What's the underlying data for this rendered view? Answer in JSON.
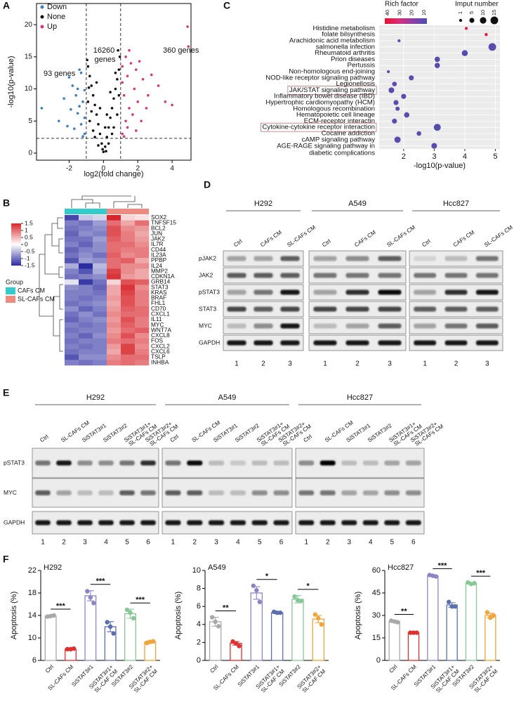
{
  "panels": [
    "A",
    "B",
    "C",
    "D",
    "E",
    "F"
  ],
  "chart_data": [
    {
      "type": "volcano",
      "xlabel": "log2(fold change)",
      "ylabel": "-log10(p-value)",
      "xlim": [
        -3.9,
        5.1
      ],
      "xticks": [
        -2,
        0,
        2,
        4
      ],
      "ylim": [
        -1.1,
        23.3
      ],
      "yticks": [
        0,
        5,
        10,
        15,
        20
      ],
      "x_thresholds": [
        -1,
        1
      ],
      "y_threshold": 2.3,
      "annotations": [
        "93 genes",
        "16260 genes",
        "360 genes"
      ],
      "series": [
        {
          "name": "Down",
          "color": "#3a7fc1",
          "x": [
            -1.1,
            -1.3,
            -1.5,
            -1.2,
            -1.8,
            -1.4,
            -2.0,
            -1.6,
            -1.1,
            -2.3,
            -1.3,
            -1.7,
            -1.9,
            -2.6,
            -1.2,
            -1.5,
            -3.6,
            -1.4,
            -2.1,
            -1.1
          ],
          "y": [
            3.0,
            4.5,
            6.2,
            8.0,
            10.5,
            7.3,
            11.8,
            9.0,
            5.5,
            8.5,
            12.5,
            3.8,
            6.8,
            5.0,
            2.6,
            10.0,
            7.0,
            13.0,
            4.2,
            9.8
          ]
        },
        {
          "name": "None",
          "color": "#111111",
          "x": [
            0,
            0.1,
            -0.1,
            0.2,
            -0.2,
            0.3,
            -0.3,
            0.4,
            -0.4,
            0.5,
            -0.5,
            0.6,
            -0.6,
            0.7,
            -0.7,
            0.8,
            -0.8,
            0.9,
            -0.9,
            0.95,
            -0.95,
            0.5,
            -0.5,
            0.8,
            -0.8,
            0.3,
            -0.3,
            0.9,
            -0.9,
            0.6,
            -0.6,
            0.7,
            0.4,
            -0.4,
            0.2,
            -0.2,
            0.1,
            -0.7,
            0.85,
            -0.05,
            0.15,
            -0.85
          ],
          "y": [
            0.2,
            1,
            1.5,
            2.5,
            3,
            4,
            4.5,
            5.5,
            6,
            7,
            7.5,
            8.5,
            9,
            10,
            10.5,
            11.5,
            12,
            13,
            13.5,
            15,
            14.5,
            3,
            2.5,
            6,
            5,
            1.5,
            1.2,
            9,
            8,
            4,
            3.5,
            12.5,
            9.5,
            11,
            6,
            7,
            4,
            6.5,
            16,
            0.6,
            0.3,
            10.2
          ]
        },
        {
          "name": "Up",
          "color": "#d6357f",
          "x": [
            1.1,
            1.3,
            1.5,
            1.2,
            1.8,
            1.4,
            2.0,
            1.6,
            1.1,
            2.3,
            1.3,
            1.7,
            1.9,
            2.6,
            1.2,
            2.8,
            3.2,
            4.0,
            1.5,
            2.2,
            1.1,
            2.5,
            3.6,
            1.9,
            4.9,
            4.95,
            1.4,
            2.1
          ],
          "y": [
            3,
            5,
            7,
            9,
            10,
            12,
            8,
            14,
            11,
            11.5,
            15,
            6,
            13,
            9,
            2.6,
            12.2,
            10.5,
            7.5,
            16,
            5,
            13.5,
            7,
            8,
            3.5,
            19.7,
            16.6,
            4,
            14.3
          ]
        }
      ]
    },
    {
      "type": "heatmap",
      "rows": [
        "SOX2",
        "TNFSF15",
        "BCL2",
        "JUN",
        "JAK2",
        "IL7R",
        "CD44",
        "IL23A",
        "PPBP",
        "IL24",
        "MMP2",
        "CDKN1A",
        "GRB14",
        "STAT3",
        "KRAS",
        "BRAF",
        "FHL1",
        "CD70",
        "CXCL1",
        "IL11",
        "MYC",
        "WNT7A",
        "CXCL8",
        "FOS",
        "CXCL2",
        "CXCL6",
        "TSLP",
        "INHBA"
      ],
      "values": [
        [
          -1.3,
          -0.4,
          -0.3,
          1.5,
          0.3,
          0.2
        ],
        [
          -0.9,
          -1.0,
          -0.7,
          1.0,
          0.6,
          1.0
        ],
        [
          -1.0,
          -0.9,
          -0.8,
          1.2,
          0.8,
          0.7
        ],
        [
          -1.1,
          -0.8,
          -0.9,
          1.2,
          0.9,
          0.6
        ],
        [
          -1.0,
          -1.0,
          -0.7,
          1.1,
          0.9,
          0.7
        ],
        [
          -0.9,
          -1.1,
          -0.8,
          1.0,
          1.0,
          0.8
        ],
        [
          -1.1,
          -0.9,
          -0.8,
          1.0,
          0.9,
          0.9
        ],
        [
          -1.0,
          -0.8,
          -1.0,
          1.1,
          0.8,
          0.9
        ],
        [
          -1.2,
          -0.7,
          -0.8,
          1.0,
          1.1,
          0.6
        ],
        [
          -0.6,
          -1.5,
          -0.5,
          1.0,
          0.8,
          0.8
        ],
        [
          -0.9,
          -1.2,
          -0.6,
          1.3,
          0.8,
          0.6
        ],
        [
          -1.0,
          -0.9,
          -0.8,
          1.4,
          0.7,
          0.6
        ],
        [
          -0.2,
          -1.4,
          -1.0,
          0.3,
          1.2,
          1.1
        ],
        [
          -0.8,
          -0.9,
          -1.1,
          0.6,
          1.4,
          0.8
        ],
        [
          -0.9,
          -0.9,
          -1.0,
          0.6,
          1.3,
          0.9
        ],
        [
          -0.9,
          -1.0,
          -0.9,
          0.7,
          1.2,
          0.9
        ],
        [
          -1.0,
          -0.9,
          -0.8,
          0.6,
          1.2,
          0.9
        ],
        [
          -0.8,
          -1.1,
          -0.9,
          0.7,
          1.1,
          1.0
        ],
        [
          -1.0,
          -0.8,
          -1.0,
          0.8,
          1.0,
          1.0
        ],
        [
          -1.1,
          -0.9,
          -0.8,
          0.7,
          1.2,
          0.9
        ],
        [
          -0.9,
          -1.0,
          -0.9,
          0.8,
          1.1,
          0.9
        ],
        [
          -1.0,
          -0.9,
          -0.9,
          0.7,
          1.0,
          1.1
        ],
        [
          -0.9,
          -1.1,
          -0.8,
          0.8,
          1.2,
          0.8
        ],
        [
          -1.0,
          -0.9,
          -0.9,
          0.9,
          1.0,
          0.9
        ],
        [
          -0.9,
          -1.0,
          -0.9,
          0.7,
          1.3,
          0.8
        ],
        [
          -1.0,
          -0.9,
          -0.9,
          0.6,
          1.3,
          0.9
        ],
        [
          -1.2,
          -0.8,
          -0.8,
          0.8,
          1.0,
          1.0
        ],
        [
          -0.9,
          -1.0,
          -0.9,
          0.9,
          1.0,
          0.9
        ]
      ],
      "lim": [
        -1.5,
        1.5
      ],
      "colorbar_ticks": [
        1.5,
        1,
        0.5,
        0,
        -0.5,
        -1,
        -1.5
      ],
      "colors": [
        "#2b2ca0",
        "#ffffff",
        "#d7262b"
      ],
      "group_title": "Group",
      "groups": [
        "CAFs CM",
        "SL-CAFs CM"
      ],
      "group_colors": [
        "#33cccc",
        "#f08a80"
      ],
      "column_groups": [
        0,
        0,
        0,
        1,
        1,
        1
      ]
    },
    {
      "type": "bubble",
      "xlabel": "-log10(p-value)",
      "color_title": "Rich factor",
      "size_title": "Imput number",
      "categories": [
        "Histidine metabolism",
        "folate bilsynthesis",
        "Arachidonic acid metabolism",
        "salmonella infection",
        "Rheumatoid arthritis",
        "Prion diseases",
        "Pertussis",
        "Non-homologous end-joining",
        "NOD-like receptor signaling pathway",
        "Legionellosis",
        "JAK/STAT signaling pathway",
        "Inflammatory bowel disease (IBD)",
        "Hypertrophic cardiomyopathy (HCM)",
        "Homologous recombination",
        "Hematopoietic cell lineage",
        "ECM-receptor interactin",
        "Cytokine-cytokine receptor interaction",
        "Cocaine addiction",
        "cAMP signaling pathway",
        "AGE-RAGE signaling pathway in diabetic complications"
      ],
      "values": [
        4.05,
        4.7,
        1.85,
        4.9,
        4.0,
        3.1,
        3.1,
        1.5,
        2.25,
        1.7,
        1.6,
        2.0,
        1.75,
        1.8,
        2.1,
        1.7,
        3.1,
        2.5,
        1.8,
        3.0
      ],
      "rich_factor": [
        36,
        38,
        14,
        12,
        11,
        12,
        12,
        16,
        12,
        13,
        12,
        12,
        12,
        13,
        12,
        12,
        11,
        13,
        12,
        12
      ],
      "input_number": [
        1,
        1,
        1,
        15,
        8,
        6,
        6,
        1,
        5,
        4,
        7,
        5,
        5,
        3,
        6,
        5,
        12,
        4,
        9,
        7
      ],
      "xlim": [
        1.2,
        5.15
      ],
      "xticks": [
        2,
        3,
        4,
        5
      ],
      "rich_ticks": [
        40,
        30,
        20,
        10
      ],
      "colors": [
        "#e8112d",
        "#d92e7a",
        "#8e3fa8",
        "#4b4fb0"
      ],
      "size_ticks": [
        1,
        5,
        10,
        15
      ],
      "highlight_index": [
        10,
        16
      ],
      "highlight_color": "#c07070",
      "grid": true
    },
    {
      "type": "bar",
      "title": "H292",
      "ylabel": "Apoptosis (%)",
      "categories": [
        "Ctrl",
        "SL-CAFs CM",
        "SiSTAT3#1",
        "SiSTAT3#1+ SL-CAF CM",
        "SiSTAT3#2",
        "SiSTAT3#2+ SL-CAF CM"
      ],
      "colors": [
        "#a8a8a8",
        "#e03030",
        "#8a86c6",
        "#5a6fae",
        "#86c896",
        "#f0a43a"
      ],
      "values": [
        13.9,
        8.0,
        17.5,
        12.0,
        14.3,
        9.3
      ],
      "errors": [
        0.1,
        0.1,
        0.9,
        0.9,
        0.8,
        0.2
      ],
      "points": [
        [
          13.8,
          13.9,
          14.0
        ],
        [
          8.0,
          8.0,
          8.1
        ],
        [
          18.3,
          17.2,
          16.2
        ],
        [
          12.8,
          12.0,
          10.8
        ],
        [
          15.0,
          14.5,
          13.5
        ],
        [
          9.1,
          9.3,
          9.4
        ]
      ],
      "ylim": [
        6,
        22
      ],
      "yticks": [
        6,
        10,
        14,
        18,
        22
      ],
      "comparisons": [
        [
          0,
          1
        ],
        [
          2,
          3
        ],
        [
          4,
          5
        ]
      ],
      "significance": [
        "***",
        "***",
        "***"
      ]
    },
    {
      "type": "bar",
      "title": "A549",
      "ylabel": "Apoptosis (%)",
      "categories": [
        "Ctrl",
        "SL-CAFs CM",
        "SiSTAT3#1",
        "SiSTAT3#1+ SL-CAF CM",
        "SiSTAT3#2",
        "SiSTAT3#2+ SL-CAF CM"
      ],
      "colors": [
        "#a8a8a8",
        "#e03030",
        "#8a86c6",
        "#5a6fae",
        "#86c896",
        "#f0a43a"
      ],
      "values": [
        4.3,
        1.9,
        7.5,
        5.3,
        6.8,
        4.6
      ],
      "errors": [
        0.5,
        0.2,
        0.7,
        0.1,
        0.4,
        0.4
      ],
      "points": [
        [
          4.8,
          4.3,
          3.8
        ],
        [
          2.1,
          1.9,
          1.6
        ],
        [
          8.3,
          7.8,
          6.5
        ],
        [
          5.4,
          5.3,
          5.3
        ],
        [
          7.1,
          6.7,
          6.6
        ],
        [
          5.1,
          4.7,
          4.0
        ]
      ],
      "ylim": [
        0,
        10
      ],
      "yticks": [
        0,
        2,
        4,
        6,
        8,
        10
      ],
      "comparisons": [
        [
          0,
          1
        ],
        [
          2,
          3
        ],
        [
          4,
          5
        ]
      ],
      "significance": [
        "**",
        "*",
        "*"
      ]
    },
    {
      "type": "bar",
      "title": "Hcc827",
      "ylabel": "Apoptosis (%)",
      "categories": [
        "Ctrl",
        "SL-CAFs CM",
        "SiSTAT3#1",
        "SiSTAT3#1+ SL-CAF CM",
        "SiSTAT3#2",
        "SiSTAT3#2+ SL-CAF CM"
      ],
      "colors": [
        "#a8a8a8",
        "#e03030",
        "#8a86c6",
        "#5a6fae",
        "#86c896",
        "#f0a43a"
      ],
      "values": [
        26,
        18.5,
        56.5,
        37,
        51.5,
        30
      ],
      "errors": [
        0.5,
        0.2,
        0.5,
        1.5,
        0.5,
        1.5
      ],
      "points": [
        [
          26.5,
          26,
          25.5
        ],
        [
          18.5,
          18.5,
          18.5
        ],
        [
          57,
          56.5,
          56
        ],
        [
          39,
          36,
          36
        ],
        [
          52,
          51,
          51.5
        ],
        [
          32,
          28.5,
          30
        ]
      ],
      "ylim": [
        0,
        60
      ],
      "yticks": [
        0,
        15,
        30,
        45,
        60
      ],
      "comparisons": [
        [
          0,
          1
        ],
        [
          2,
          3
        ],
        [
          4,
          5
        ]
      ],
      "significance": [
        "**",
        "***",
        "***"
      ]
    }
  ],
  "blots": [
    {
      "lines": [
        "H292",
        "A549",
        "Hcc827"
      ],
      "lanes": [
        "Ctrl",
        "CAFs CM",
        "SL-CAFs CM"
      ],
      "rows": [
        "pJAK2",
        "JAK2",
        "pSTAT3",
        "STAT3",
        "MYC",
        "GAPDH"
      ],
      "lane_numbers": [
        "1",
        "2",
        "3"
      ],
      "bands": [
        [
          [
            0.3,
            0.3,
            0.6
          ],
          [
            0.6,
            0.6,
            0.6
          ],
          [
            0.3,
            0.5,
            0.9
          ],
          [
            0.7,
            0.6,
            0.7
          ],
          [
            0.2,
            0.4,
            0.9
          ],
          [
            0.9,
            0.9,
            0.9
          ]
        ],
        [
          [
            0.3,
            0.4,
            0.6
          ],
          [
            0.5,
            0.5,
            0.5
          ],
          [
            0.3,
            0.8,
            0.95
          ],
          [
            0.7,
            0.7,
            0.7
          ],
          [
            0.2,
            0.3,
            0.6
          ],
          [
            0.9,
            0.9,
            0.9
          ]
        ],
        [
          [
            0.1,
            0.2,
            0.5
          ],
          [
            0.5,
            0.5,
            0.5
          ],
          [
            0.3,
            0.8,
            0.9
          ],
          [
            0.6,
            0.6,
            0.6
          ],
          [
            0.3,
            0.5,
            0.6
          ],
          [
            0.9,
            0.9,
            0.9
          ]
        ]
      ]
    },
    {
      "lines": [
        "H292",
        "A549",
        "Hcc827"
      ],
      "lanes": [
        "Ctrl",
        "SL-CAFs CM",
        "SiSTAT3#1",
        "SiSTAT3#2",
        "SiSTAT3#1+ SL-CAFs CM",
        "SiSTAT3#2+ SL-CAFs CM"
      ],
      "rows": [
        "pSTAT3",
        "MYC",
        "GAPDH"
      ],
      "lane_numbers": [
        "1",
        "2",
        "3",
        "4",
        "5",
        "6"
      ],
      "bands": [
        [
          [
            0.5,
            0.9,
            0.4,
            0.4,
            0.5,
            0.8
          ],
          [
            0.6,
            0.3,
            0.2,
            0.2,
            0.6,
            0.5
          ],
          [
            0.9,
            0.9,
            0.9,
            0.9,
            0.9,
            0.9
          ]
        ],
        [
          [
            0.5,
            0.95,
            0.2,
            0.15,
            0.2,
            0.2
          ],
          [
            0.6,
            0.6,
            0.2,
            0.2,
            0.4,
            0.4
          ],
          [
            0.9,
            0.9,
            0.9,
            0.9,
            0.9,
            0.9
          ]
        ],
        [
          [
            0.4,
            1.0,
            0.2,
            0.2,
            0.3,
            0.3
          ],
          [
            0.5,
            0.5,
            0.3,
            0.3,
            0.4,
            0.4
          ],
          [
            0.9,
            0.9,
            0.9,
            0.9,
            0.9,
            0.9
          ]
        ]
      ]
    }
  ]
}
